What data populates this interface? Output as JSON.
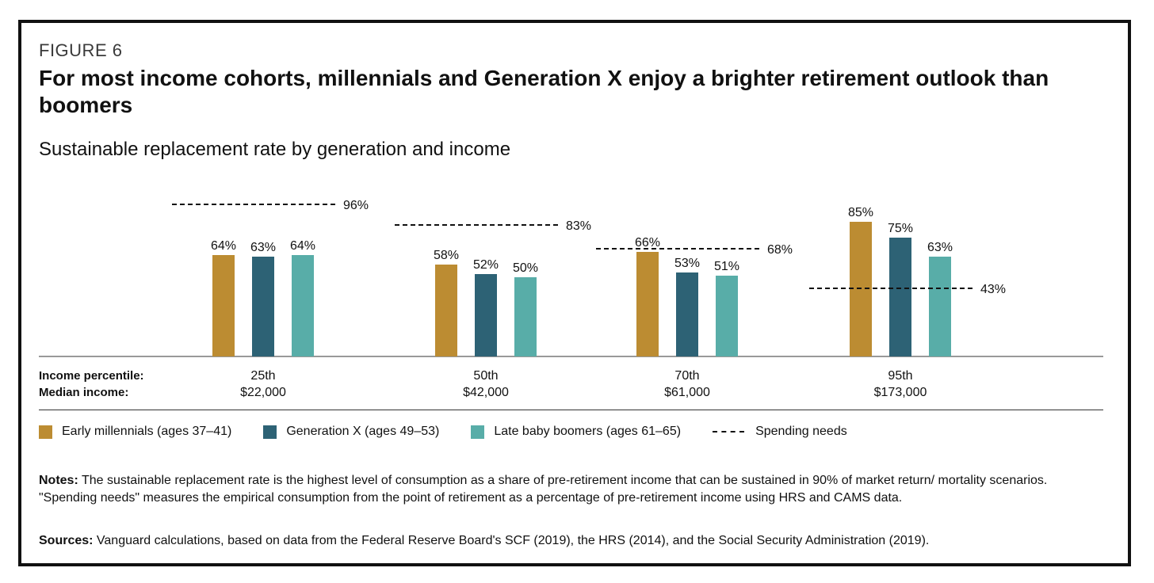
{
  "figure_label": "FIGURE 6",
  "headline": "For most income cohorts, millennials and Generation X enjoy a brighter retirement outlook than boomers",
  "colors": {
    "early_millennials": "#BC8C32",
    "generation_x": "#2D6275",
    "late_boomers": "#58ADA8",
    "spending_needs": "#111111"
  },
  "chart_data": {
    "type": "bar",
    "title": "Sustainable replacement rate by generation and income",
    "row_labels": {
      "percentile": "Income percentile:",
      "income": "Median income:"
    },
    "categories": [
      "25th",
      "50th",
      "70th",
      "95th"
    ],
    "median_incomes": [
      "$22,000",
      "$42,000",
      "$61,000",
      "$173,000"
    ],
    "series": [
      {
        "name": "Early millennials (ages 37–41)",
        "values": [
          64,
          58,
          66,
          85
        ],
        "labels": [
          "64%",
          "58%",
          "66%",
          "85%"
        ]
      },
      {
        "name": "Generation X (ages 49–53)",
        "values": [
          63,
          52,
          53,
          75
        ],
        "labels": [
          "63%",
          "52%",
          "53%",
          "75%"
        ]
      },
      {
        "name": "Late baby boomers (ages 61–65)",
        "values": [
          64,
          50,
          51,
          63
        ],
        "labels": [
          "64%",
          "50%",
          "51%",
          "63%"
        ]
      }
    ],
    "spending_needs": {
      "name": "Spending needs",
      "values": [
        96,
        83,
        68,
        43
      ],
      "labels": [
        "96%",
        "83%",
        "68%",
        "43%"
      ]
    },
    "ylim": [
      0,
      100
    ],
    "grid": false,
    "legend_position": "bottom"
  },
  "notes": {
    "label": "Notes:",
    "text": "The sustainable replacement rate is the highest level of consumption as a share of pre-retirement income that can be sustained in 90% of market return/ mortality scenarios. \"Spending needs\" measures the empirical consumption from the point of retirement as a percentage of pre-retirement income using HRS and CAMS data."
  },
  "sources": {
    "label": "Sources:",
    "text": "Vanguard calculations, based on data from the Federal Reserve Board's SCF (2019), the HRS (2014), and the Social Security Administration (2019)."
  }
}
